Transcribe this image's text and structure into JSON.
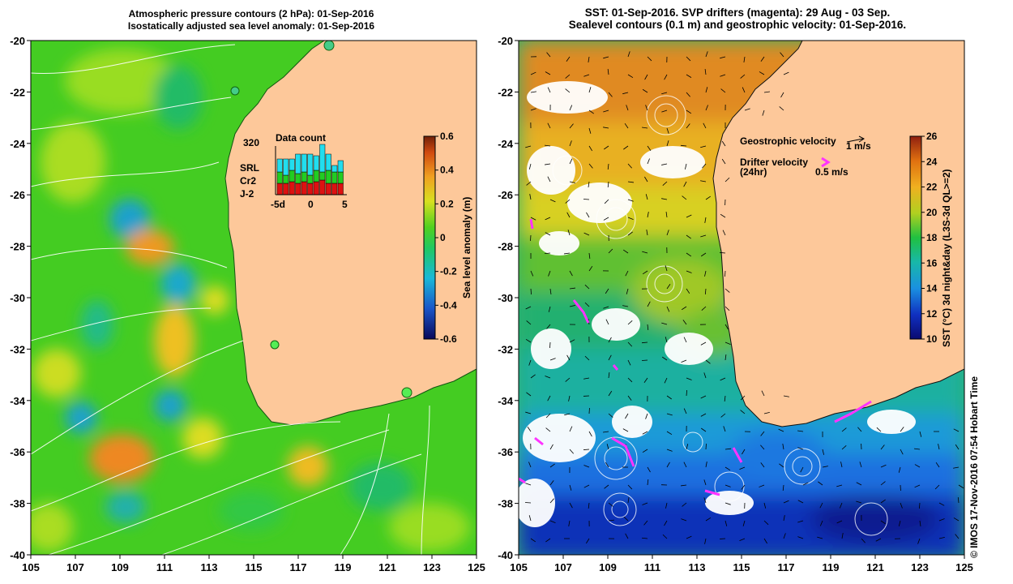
{
  "left_panel": {
    "title_line1": "Atmospheric pressure contours (2 hPa): 01-Sep-2016",
    "title_line2": "Isostatically adjusted sea level anomaly: 01-Sep-2016",
    "x_ticks": [
      "105",
      "107",
      "109",
      "111",
      "113",
      "115",
      "117",
      "119",
      "121",
      "123",
      "125"
    ],
    "y_ticks": [
      "-20",
      "-22",
      "-24",
      "-26",
      "-28",
      "-30",
      "-32",
      "-34",
      "-36",
      "-38",
      "-40"
    ],
    "colorbar": {
      "label": "Sea level anomaly (m)",
      "ticks": [
        "0.6",
        "0.4",
        "0.2",
        "0",
        "-0.2",
        "-0.4",
        "-0.6"
      ],
      "range": [
        -0.6,
        0.6
      ]
    },
    "data_count": {
      "title": "Data count",
      "max_label": "320",
      "x_ticks": [
        "-5d",
        "0",
        "5"
      ],
      "legend": [
        {
          "name": "SRL",
          "color": "#22ddee"
        },
        {
          "name": "Cr2",
          "color": "#22cc22"
        },
        {
          "name": "J-2",
          "color": "#dd1111"
        }
      ]
    }
  },
  "right_panel": {
    "title_line1": "SST: 01-Sep-2016. SVP drifters (magenta): 29 Aug - 03 Sep.",
    "title_line2": "Sealevel contours (0.1 m) and geostrophic velocity: 01-Sep-2016.",
    "x_ticks": [
      "105",
      "107",
      "109",
      "111",
      "113",
      "115",
      "117",
      "119",
      "121",
      "123",
      "125"
    ],
    "y_ticks": [
      "-20",
      "-22",
      "-24",
      "-26",
      "-28",
      "-30",
      "-32",
      "-34",
      "-36",
      "-38",
      "-40"
    ],
    "colorbar": {
      "label": "SST (°C) 3d night&day (L3S-3d QL>=2)",
      "ticks": [
        "26",
        "24",
        "22",
        "20",
        "18",
        "16",
        "14",
        "12",
        "10"
      ],
      "range": [
        10,
        26
      ]
    },
    "legend": {
      "geostrophic_label": "Geostrophic velocity",
      "geostrophic_scale": "1 m/s",
      "drifter_label": "Drifter velocity",
      "drifter_sub": "(24hr)",
      "drifter_scale": "0.5 m/s"
    }
  },
  "credit": "© IMOS 17-Nov-2016 07:54 Hobart Time",
  "colors": {
    "land": "#fdc89a",
    "drifter": "#ff33ff"
  }
}
